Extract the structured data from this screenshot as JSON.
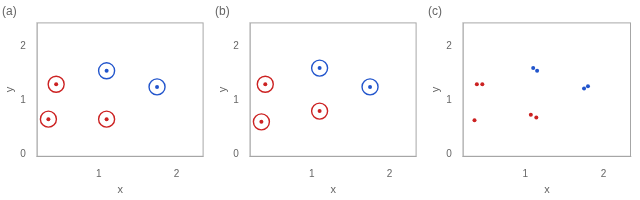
{
  "chart_data": [
    {
      "type": "scatter",
      "title": "(a)",
      "xlabel": "x",
      "ylabel": "y",
      "xlim": [
        0.2,
        2.35
      ],
      "ylim": [
        -0.05,
        2.45
      ],
      "xticks": [
        1,
        2
      ],
      "yticks": [
        0,
        1,
        2
      ],
      "grid": false,
      "series": [
        {
          "color": "#2255cc",
          "marker": "ringed",
          "x": [
            1.1,
            1.75
          ],
          "values": [
            1.55,
            1.25
          ]
        },
        {
          "color": "#cc2222",
          "marker": "ringed",
          "x": [
            0.45,
            0.35,
            1.1
          ],
          "values": [
            1.3,
            0.65,
            0.65
          ]
        }
      ]
    },
    {
      "type": "scatter",
      "title": "(b)",
      "xlabel": "x",
      "ylabel": "y",
      "xlim": [
        0.2,
        2.35
      ],
      "ylim": [
        -0.05,
        2.45
      ],
      "xticks": [
        1,
        2
      ],
      "yticks": [
        0,
        1,
        2
      ],
      "grid": false,
      "series": [
        {
          "color": "#2255cc",
          "marker": "ringed",
          "x": [
            1.1,
            1.75
          ],
          "values": [
            1.6,
            1.25
          ]
        },
        {
          "color": "#cc2222",
          "marker": "ringed",
          "x": [
            0.4,
            0.35,
            1.1
          ],
          "values": [
            1.3,
            0.6,
            0.8
          ]
        }
      ]
    },
    {
      "type": "scatter",
      "title": "(c)",
      "xlabel": "x",
      "ylabel": "y",
      "xlim": [
        0.2,
        2.35
      ],
      "ylim": [
        -0.05,
        2.45
      ],
      "xticks": [
        1,
        2
      ],
      "yticks": [
        0,
        1,
        2
      ],
      "grid": false,
      "series": [
        {
          "color": "#2255cc",
          "marker": "dot",
          "x": [
            1.1,
            1.15,
            1.75,
            1.8
          ],
          "values": [
            1.6,
            1.55,
            1.22,
            1.26
          ]
        },
        {
          "color": "#cc2222",
          "marker": "dot",
          "x": [
            0.38,
            0.45,
            0.35,
            1.07,
            1.14
          ],
          "values": [
            1.3,
            1.3,
            0.63,
            0.73,
            0.68
          ]
        }
      ]
    }
  ]
}
